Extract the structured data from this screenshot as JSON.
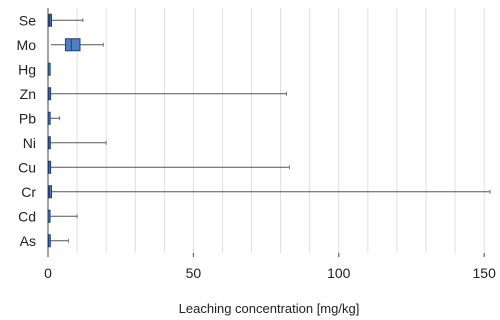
{
  "chart_data": {
    "type": "boxplot",
    "orientation": "horizontal",
    "xlabel": "Leaching concentration [mg/kg]",
    "ylabel": "",
    "xlim": [
      0,
      152
    ],
    "x_ticks": [
      0,
      50,
      100,
      150
    ],
    "grid": {
      "x_major": true,
      "x_minor": true,
      "y": false
    },
    "colors": {
      "box_fill": "#4f7fbf",
      "box_edge": "#1f3f70",
      "whisker": "#555555",
      "grid": "#d8d8d8",
      "axis": "#444444"
    },
    "series": [
      {
        "category": "Se",
        "min": 0,
        "q1": 0.3,
        "median": 0.6,
        "q3": 1.2,
        "max": 12.0
      },
      {
        "category": "Mo",
        "min": 1.0,
        "q1": 6.0,
        "median": 8.0,
        "q3": 11.0,
        "max": 19.0
      },
      {
        "category": "Hg",
        "min": 0,
        "q1": 0.05,
        "median": 0.1,
        "q3": 0.2,
        "max": 0.5
      },
      {
        "category": "Zn",
        "min": 0,
        "q1": 0.1,
        "median": 0.3,
        "q3": 0.9,
        "max": 82.0
      },
      {
        "category": "Pb",
        "min": 0,
        "q1": 0.05,
        "median": 0.1,
        "q3": 0.3,
        "max": 4.0
      },
      {
        "category": "Ni",
        "min": 0,
        "q1": 0.1,
        "median": 0.3,
        "q3": 0.7,
        "max": 20.0
      },
      {
        "category": "Cu",
        "min": 0,
        "q1": 0.1,
        "median": 0.3,
        "q3": 0.9,
        "max": 83.0
      },
      {
        "category": "Cr",
        "min": 0,
        "q1": 0.2,
        "median": 0.5,
        "q3": 1.2,
        "max": 152.0
      },
      {
        "category": "Cd",
        "min": 0,
        "q1": 0.02,
        "median": 0.05,
        "q3": 0.1,
        "max": 10.0
      },
      {
        "category": "As",
        "min": 0,
        "q1": 0.1,
        "median": 0.2,
        "q3": 0.4,
        "max": 7.0
      }
    ]
  }
}
